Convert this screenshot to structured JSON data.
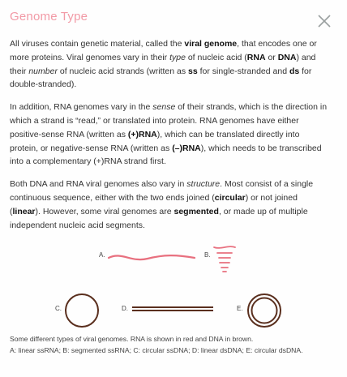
{
  "modal": {
    "title": "Genome Type",
    "close_icon": "close-icon"
  },
  "paragraphs": {
    "p1": {
      "t1": "All viruses contain genetic material, called the ",
      "b1": "viral genome",
      "t2": ", that encodes one or more proteins. Viral genomes vary in their ",
      "i1": "type",
      "t3": " of nucleic acid (",
      "b2": "RNA",
      "t4": " or ",
      "b3": "DNA",
      "t5": ") and their ",
      "i2": "number",
      "t6": " of nucleic acid strands (written as ",
      "b4": "ss",
      "t7": " for single-stranded and ",
      "b5": "ds",
      "t8": " for double-stranded)."
    },
    "p2": {
      "t1": "In addition, RNA genomes vary in the ",
      "i1": "sense",
      "t2": " of their strands, which is the direction in which a strand is “read,” or translated into protein. RNA genomes have either positive-sense RNA (written as ",
      "b1": "(+)RNA",
      "t3": "), which can be translated directly into protein, or negative-sense RNA (written as ",
      "b2": "(–)RNA",
      "t4": "), which needs to be transcribed into a complementary (+)RNA strand first."
    },
    "p3": {
      "t1": "Both DNA and RNA viral genomes also vary in ",
      "i1": "structure",
      "t2": ". Most consist of a single continuous sequence, either with the two ends joined (",
      "b1": "circular",
      "t3": ") or not joined (",
      "b2": "linear",
      "t4": "). However, some viral genomes are ",
      "b3": "segmented",
      "t5": ", or made up of multiple independent nucleic acid segments."
    }
  },
  "diagram_labels": {
    "a": "A.",
    "b": "B.",
    "c": "C.",
    "d": "D.",
    "e": "E."
  },
  "caption": {
    "line1": "Some different types of viral genomes. RNA is shown in red and DNA in brown.",
    "line2": "A: linear ssRNA; B: segmented ssRNA; C: circular ssDNA; D: linear dsDNA; E: circular dsDNA."
  },
  "colors": {
    "rna": "#e8707f",
    "dna": "#5a2f1e",
    "title": "#f29aa6",
    "close": "#9aa0a0"
  }
}
